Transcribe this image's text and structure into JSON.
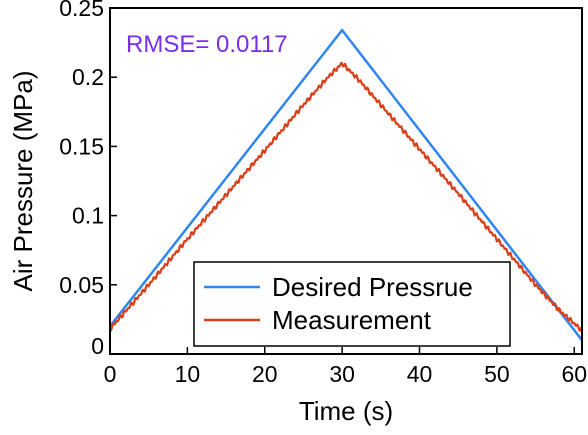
{
  "chart_data": {
    "type": "line",
    "title": "",
    "xlabel": "Time (s)",
    "ylabel": "Air Pressure (MPa)",
    "xlim": [
      0,
      61
    ],
    "ylim": [
      0,
      0.25
    ],
    "xticks": [
      0,
      10,
      20,
      30,
      40,
      50,
      60
    ],
    "xtick_labels": [
      "0",
      "10",
      "20",
      "30",
      "40",
      "50",
      "60"
    ],
    "yticks": [
      0,
      0.05,
      0.1,
      0.15,
      0.2,
      0.25
    ],
    "ytick_labels": [
      "0",
      "0.05",
      "0.1",
      "0.15",
      "0.2",
      "0.25"
    ],
    "grid": false,
    "legend_position": "bottom-center",
    "annotation": {
      "text": "RMSE= 0.0117",
      "color": "#7a2fe6"
    },
    "series": [
      {
        "name": "Desired Pressrue",
        "color": "#2f86ef",
        "x": [
          0,
          30,
          61
        ],
        "y": [
          0.02,
          0.234,
          0.01
        ]
      },
      {
        "name": "Measurement",
        "color": "#d8401a",
        "x": [
          0,
          5,
          10,
          15,
          20,
          25,
          28,
          30,
          32,
          35,
          40,
          45,
          50,
          55,
          58,
          61
        ],
        "y": [
          0.018,
          0.05,
          0.083,
          0.115,
          0.147,
          0.18,
          0.199,
          0.21,
          0.199,
          0.18,
          0.148,
          0.116,
          0.083,
          0.05,
          0.032,
          0.017
        ]
      }
    ]
  }
}
